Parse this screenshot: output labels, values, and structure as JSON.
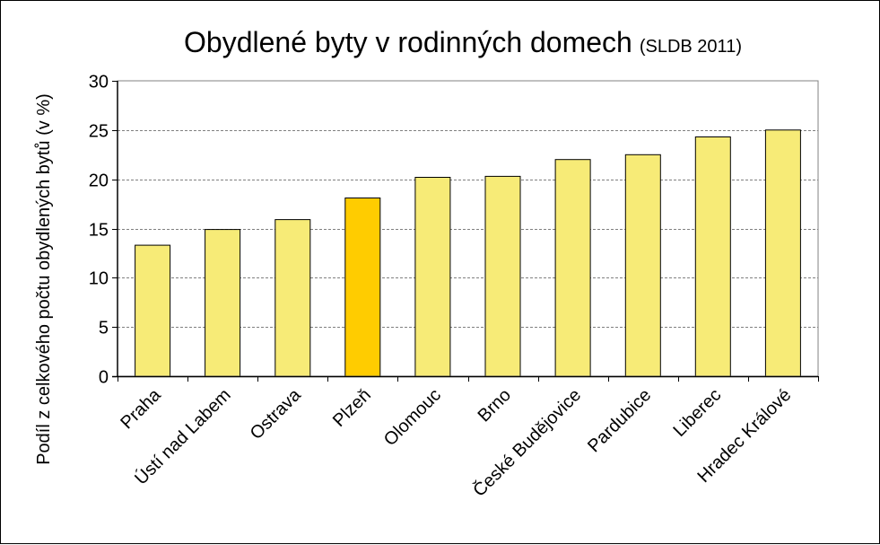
{
  "chart_data": {
    "type": "bar",
    "title": "Obydlené  byty  v rodinných  domech",
    "subtitle": "(SLDB 2011)",
    "ylabel": "Podíl z celkového počtu obydlených bytů (v %)",
    "xlabel": "",
    "ylim": [
      0,
      30
    ],
    "yticks": [
      0,
      5,
      10,
      15,
      20,
      25,
      30
    ],
    "grid": true,
    "categories": [
      "Praha",
      "Ústí nad Labem",
      "Ostrava",
      "Plzeň",
      "Olomouc",
      "Brno",
      "České Budějovice",
      "Pardubice",
      "Liberec",
      "Hradec Králové"
    ],
    "values": [
      13.3,
      14.9,
      15.9,
      18.1,
      20.2,
      20.3,
      22.0,
      22.5,
      24.3,
      25.0
    ],
    "highlight": "Plzeň",
    "colors": {
      "bar": "#F7EB77",
      "highlight": "#FFCC00",
      "outline": "#000000",
      "grid": "#808080"
    }
  }
}
